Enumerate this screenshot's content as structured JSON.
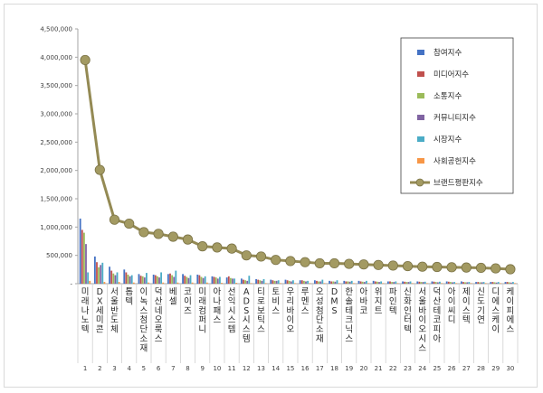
{
  "chart_data": {
    "type": "bar",
    "combo_line_series": "브랜드평판지수",
    "ylim": [
      0,
      4500000
    ],
    "ytick_labels": [
      "-",
      "500,000",
      "1,000,000",
      "1,500,000",
      "2,000,000",
      "2,500,000",
      "3,000,000",
      "3,500,000",
      "4,000,000",
      "4,500,000"
    ],
    "yticks": [
      0,
      500000,
      1000000,
      1500000,
      2000000,
      2500000,
      3000000,
      3500000,
      4000000,
      4500000
    ],
    "grid": false,
    "legend_position": "top-right",
    "ranks": [
      "1",
      "2",
      "3",
      "4",
      "5",
      "6",
      "7",
      "8",
      "9",
      "10",
      "11",
      "12",
      "13",
      "14",
      "15",
      "16",
      "17",
      "18",
      "19",
      "20",
      "21",
      "22",
      "23",
      "24",
      "25",
      "26",
      "27",
      "28",
      "29",
      "30"
    ],
    "categories": [
      "미래나노텍",
      "DX세미콘",
      "서울반도체",
      "톱텍",
      "이녹스첨단소재",
      "덕산네오룩스",
      "베셀",
      "코이즈",
      "미래컴퍼니",
      "아나패스",
      "선익시스템",
      "ADS시스템",
      "티로보틱스",
      "토비스",
      "우리바이오",
      "루멘스",
      "오성첨단소재",
      "DMS",
      "한솔테크닉스",
      "아바코",
      "위지트",
      "파인텍",
      "신화인터텍",
      "서울바이오시스",
      "덕산테코피아",
      "아이씨디",
      "제이스텍",
      "신도기연",
      "디에스케이",
      "케이피에스"
    ],
    "series": [
      {
        "name": "참여지수",
        "color": "#4472c4",
        "values": [
          1150000,
          480000,
          300000,
          250000,
          170000,
          160000,
          170000,
          170000,
          160000,
          130000,
          110000,
          90000,
          80000,
          70000,
          70000,
          60000,
          60000,
          50000,
          50000,
          50000,
          50000,
          40000,
          40000,
          40000,
          40000,
          40000,
          40000,
          30000,
          30000,
          30000
        ]
      },
      {
        "name": "미디어지수",
        "color": "#c0504d",
        "values": [
          950000,
          380000,
          230000,
          200000,
          140000,
          150000,
          180000,
          140000,
          150000,
          120000,
          130000,
          70000,
          70000,
          60000,
          60000,
          60000,
          50000,
          40000,
          40000,
          40000,
          40000,
          40000,
          35000,
          35000,
          35000,
          35000,
          30000,
          30000,
          30000,
          30000
        ]
      },
      {
        "name": "소통지수",
        "color": "#9bbb59",
        "values": [
          900000,
          290000,
          180000,
          160000,
          130000,
          130000,
          150000,
          120000,
          120000,
          110000,
          100000,
          60000,
          60000,
          50000,
          50000,
          50000,
          40000,
          40000,
          40000,
          35000,
          35000,
          30000,
          30000,
          30000,
          30000,
          30000,
          25000,
          25000,
          25000,
          25000
        ]
      },
      {
        "name": "커뮤니티지수",
        "color": "#8064a2",
        "values": [
          700000,
          330000,
          150000,
          130000,
          110000,
          110000,
          120000,
          100000,
          100000,
          90000,
          90000,
          50000,
          50000,
          50000,
          40000,
          40000,
          40000,
          35000,
          35000,
          30000,
          30000,
          30000,
          30000,
          30000,
          25000,
          25000,
          25000,
          25000,
          20000,
          20000
        ]
      },
      {
        "name": "시장지수",
        "color": "#4bacc6",
        "values": [
          200000,
          370000,
          200000,
          150000,
          190000,
          200000,
          230000,
          150000,
          130000,
          120000,
          90000,
          140000,
          80000,
          60000,
          60000,
          50000,
          70000,
          60000,
          50000,
          50000,
          40000,
          40000,
          40000,
          35000,
          35000,
          30000,
          30000,
          30000,
          30000,
          30000
        ]
      },
      {
        "name": "사회공헌지수",
        "color": "#f79646",
        "values": [
          50000,
          30000,
          30000,
          20000,
          20000,
          20000,
          20000,
          20000,
          20000,
          15000,
          15000,
          10000,
          10000,
          10000,
          10000,
          10000,
          10000,
          10000,
          10000,
          10000,
          10000,
          10000,
          10000,
          10000,
          10000,
          10000,
          10000,
          10000,
          10000,
          10000
        ]
      },
      {
        "name": "브랜드평판지수",
        "color": "#948a54",
        "values": [
          3950000,
          2010000,
          1130000,
          1060000,
          910000,
          880000,
          830000,
          780000,
          660000,
          640000,
          620000,
          500000,
          480000,
          420000,
          400000,
          380000,
          360000,
          360000,
          350000,
          340000,
          330000,
          320000,
          310000,
          300000,
          295000,
          290000,
          285000,
          280000,
          270000,
          255000
        ]
      }
    ]
  }
}
